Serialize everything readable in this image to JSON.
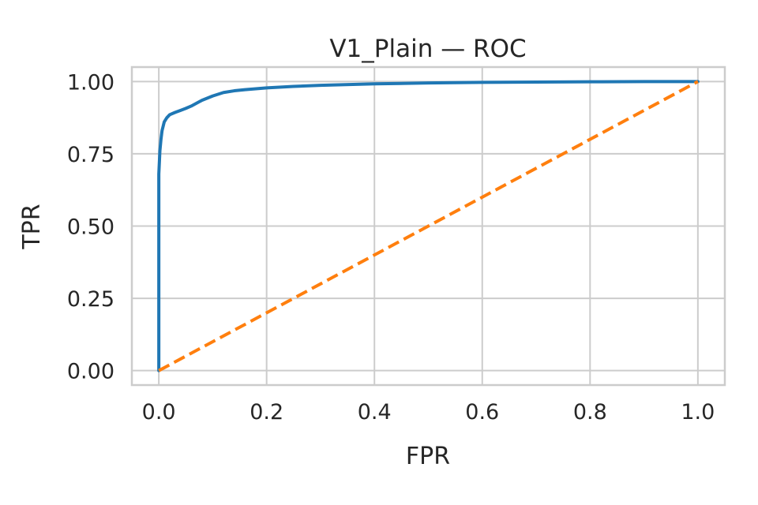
{
  "chart_data": {
    "type": "line",
    "title": "V1_Plain — ROC",
    "xlabel": "FPR",
    "ylabel": "TPR",
    "xlim": [
      -0.05,
      1.05
    ],
    "ylim": [
      -0.05,
      1.05
    ],
    "xticks": [
      0.0,
      0.2,
      0.4,
      0.6,
      0.8,
      1.0
    ],
    "xtick_labels": [
      "0.0",
      "0.2",
      "0.4",
      "0.6",
      "0.8",
      "1.0"
    ],
    "yticks": [
      0.0,
      0.25,
      0.5,
      0.75,
      1.0
    ],
    "ytick_labels": [
      "0.00",
      "0.25",
      "0.50",
      "0.75",
      "1.00"
    ],
    "grid": true,
    "series": [
      {
        "color": "#1f77b4",
        "style": "solid",
        "x": [
          0.0,
          0.0,
          0.002,
          0.004,
          0.006,
          0.01,
          0.015,
          0.02,
          0.03,
          0.04,
          0.05,
          0.06,
          0.08,
          0.1,
          0.12,
          0.14,
          0.16,
          0.2,
          0.25,
          0.3,
          0.4,
          0.5,
          0.6,
          0.7,
          0.8,
          0.9,
          1.0
        ],
        "y": [
          0.0,
          0.68,
          0.76,
          0.8,
          0.83,
          0.86,
          0.875,
          0.885,
          0.893,
          0.9,
          0.907,
          0.915,
          0.935,
          0.95,
          0.962,
          0.968,
          0.972,
          0.978,
          0.983,
          0.987,
          0.992,
          0.995,
          0.997,
          0.998,
          0.999,
          1.0,
          1.0
        ]
      },
      {
        "color": "#ff7f0e",
        "style": "dashed",
        "x": [
          0.0,
          1.0
        ],
        "y": [
          0.0,
          1.0
        ]
      }
    ]
  }
}
